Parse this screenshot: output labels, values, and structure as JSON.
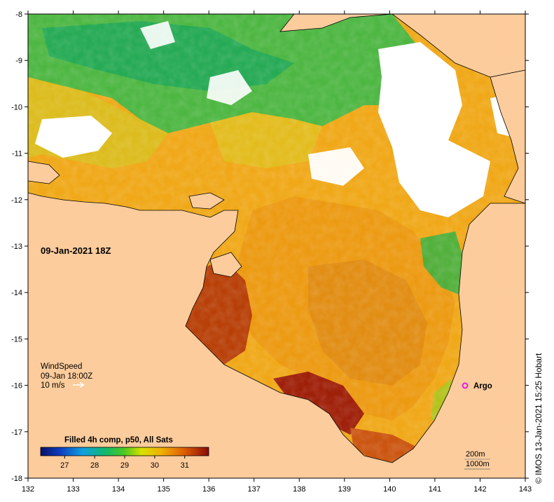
{
  "map": {
    "date_label": "09-Jan-2021 18Z",
    "wind": {
      "title": "WindSpeed",
      "time": "09-Jan 18:00Z",
      "scale_label": "10 m/s"
    },
    "argo_label": "Argo",
    "depth_contours": [
      "200m",
      "1000m"
    ],
    "colorbar": {
      "title": "Filled 4h comp, p50, All Sats",
      "ticks": [
        "27",
        "28",
        "29",
        "30",
        "31"
      ],
      "range": [
        26.2,
        31.8
      ]
    },
    "credit": "© IMOS 13-Jan-2021 15:25 Hobart",
    "lon_ticks": [
      "132",
      "133",
      "134",
      "135",
      "136",
      "137",
      "138",
      "139",
      "140",
      "141",
      "142",
      "143"
    ],
    "lat_ticks": [
      "-8",
      "-9",
      "-10",
      "-11",
      "-12",
      "-13",
      "-14",
      "-15",
      "-16",
      "-17",
      "-18"
    ],
    "lon_range": [
      132,
      143
    ],
    "lat_range": [
      -18,
      -8
    ],
    "colors": {
      "land": "#fccc9c",
      "argo": "#e020e0",
      "ocean_cool": "#22b048",
      "ocean_warm": "#f0a010",
      "ocean_hot": "#c05008"
    }
  }
}
